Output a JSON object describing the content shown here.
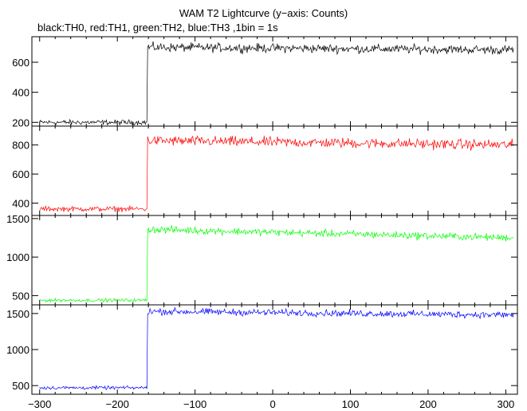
{
  "chart_data": {
    "type": "line",
    "title": "WAM T2 Lightcurve (y−axis: Counts)",
    "subtitle": "black:TH0, red:TH1, green:TH2, blue:TH3 ,1bin = 1s",
    "xlim": [
      -310,
      315
    ],
    "x_ticks": [
      -300,
      -200,
      -100,
      0,
      100,
      200,
      300
    ],
    "x_tick_labels": [
      "−300",
      "−200",
      "−100",
      "0",
      "100",
      "200",
      "300"
    ],
    "trigger_time": -161,
    "grid": false,
    "panels": [
      {
        "name": "TH0",
        "color": "#000000",
        "ylim": [
          175,
          770
        ],
        "y_ticks": [
          200,
          400,
          600
        ],
        "y_tick_labels": [
          "200",
          "400",
          "600"
        ],
        "pre_level": 200,
        "pre_noise": 14,
        "post_start": 700,
        "post_end": 682,
        "post_noise": 25
      },
      {
        "name": "TH1",
        "color": "#ff0000",
        "ylim": [
          315,
          930
        ],
        "y_ticks": [
          400,
          600,
          800
        ],
        "y_tick_labels": [
          "400",
          "600",
          "800"
        ],
        "pre_level": 360,
        "pre_noise": 15,
        "post_start": 830,
        "post_end": 800,
        "post_noise": 30
      },
      {
        "name": "TH2",
        "color": "#00ff00",
        "ylim": [
          380,
          1540
        ],
        "y_ticks": [
          500,
          1000,
          1500
        ],
        "y_tick_labels": [
          "500",
          "1000",
          "1500"
        ],
        "pre_level": 440,
        "pre_noise": 18,
        "post_start": 1360,
        "post_end": 1250,
        "post_noise": 40
      },
      {
        "name": "TH3",
        "color": "#0000ff",
        "ylim": [
          380,
          1620
        ],
        "y_ticks": [
          500,
          1000,
          1500
        ],
        "y_tick_labels": [
          "500",
          "1000",
          "1500"
        ],
        "pre_level": 470,
        "pre_noise": 20,
        "post_start": 1530,
        "post_end": 1480,
        "post_noise": 40
      }
    ]
  }
}
